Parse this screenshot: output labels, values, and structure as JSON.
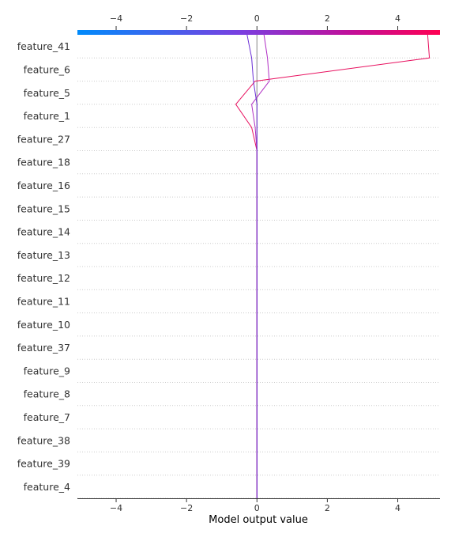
{
  "chart_data": {
    "type": "line",
    "plot_kind": "decision plot",
    "xlabel": "Model output value",
    "xlim": [
      -5.1,
      5.2
    ],
    "x_ticks": [
      -4,
      -2,
      0,
      2,
      4
    ],
    "x_tick_labels": [
      "−4",
      "−2",
      "0",
      "2",
      "4"
    ],
    "colorbar": {
      "position": "top",
      "range": [
        -5.1,
        5.2
      ],
      "colors": [
        "#008bfb",
        "#7a3fe0",
        "#c0109a",
        "#ff0052"
      ]
    },
    "features": [
      "feature_41",
      "feature_6",
      "feature_5",
      "feature_1",
      "feature_27",
      "feature_18",
      "feature_16",
      "feature_15",
      "feature_14",
      "feature_13",
      "feature_12",
      "feature_11",
      "feature_10",
      "feature_37",
      "feature_9",
      "feature_8",
      "feature_7",
      "feature_38",
      "feature_39",
      "feature_4"
    ],
    "base_value": 0.0,
    "base_line_color": "#999999",
    "grid": "dotted horizontal",
    "series": [
      {
        "color": "#e8105f",
        "values": [
          4.9,
          -0.05,
          -0.6,
          -0.15,
          0,
          0,
          0,
          0,
          0,
          0,
          0,
          0,
          0,
          0,
          0,
          0,
          0,
          0,
          0,
          0
        ],
        "final": 4.85
      },
      {
        "color": "#b02ec4",
        "values": [
          0.3,
          0.35,
          -0.15,
          -0.05,
          0,
          0,
          0,
          0,
          0,
          0,
          0,
          0,
          0,
          0,
          0,
          0,
          0,
          0,
          0,
          0
        ],
        "final": 0.2
      },
      {
        "color": "#6a2fd6",
        "values": [
          -0.15,
          -0.1,
          0.0,
          0.0,
          0,
          0,
          0,
          0,
          0,
          0,
          0,
          0,
          0,
          0,
          0,
          0,
          0,
          0,
          0,
          0
        ],
        "final": -0.28
      }
    ]
  }
}
